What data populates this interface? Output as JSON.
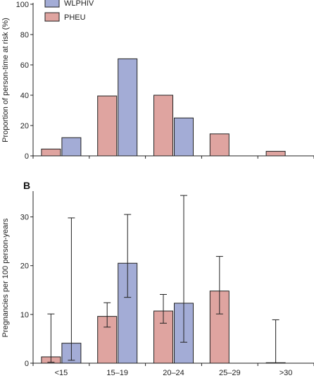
{
  "chart_data": [
    {
      "type": "bar",
      "panel_label": "",
      "ylabel": "Proportion of person-time at risk (%)",
      "ylim": [
        0,
        100
      ],
      "yticks": [
        0,
        20,
        40,
        60,
        80,
        100
      ],
      "categories": [
        "<15",
        "15–19",
        "20–24",
        "25–29",
        ">30"
      ],
      "series": [
        {
          "name": "PHEU",
          "color": "#dfa4a0",
          "values": [
            4.5,
            39.5,
            40,
            14.5,
            3
          ]
        },
        {
          "name": "WLPHIV",
          "color": "#a3acd6",
          "values": [
            12,
            64,
            25,
            null,
            null
          ]
        }
      ],
      "legend": "top-left",
      "legend_order": [
        "WLPHIV",
        "PHEU"
      ]
    },
    {
      "type": "bar",
      "panel_label": "B",
      "ylabel": "Pregnancies per 100 person-years",
      "ylim": [
        0,
        35
      ],
      "yticks": [
        0,
        10,
        20,
        30
      ],
      "categories": [
        "<15",
        "15–19",
        "20–24",
        "25–29",
        ">30"
      ],
      "series": [
        {
          "name": "PHEU",
          "color": "#dfa4a0",
          "values": [
            1.3,
            9.6,
            10.7,
            14.8,
            0.1
          ],
          "ci_low": [
            0.2,
            7.4,
            8.2,
            10.1,
            0
          ],
          "ci_high": [
            10.1,
            12.4,
            14.1,
            21.9,
            8.9
          ]
        },
        {
          "name": "WLPHIV",
          "color": "#a3acd6",
          "values": [
            4.1,
            20.5,
            12.3,
            null,
            null
          ],
          "ci_low": [
            0.6,
            13.5,
            4.3,
            null,
            null
          ],
          "ci_high": [
            29.8,
            30.5,
            34.4,
            null,
            null
          ]
        }
      ]
    }
  ]
}
